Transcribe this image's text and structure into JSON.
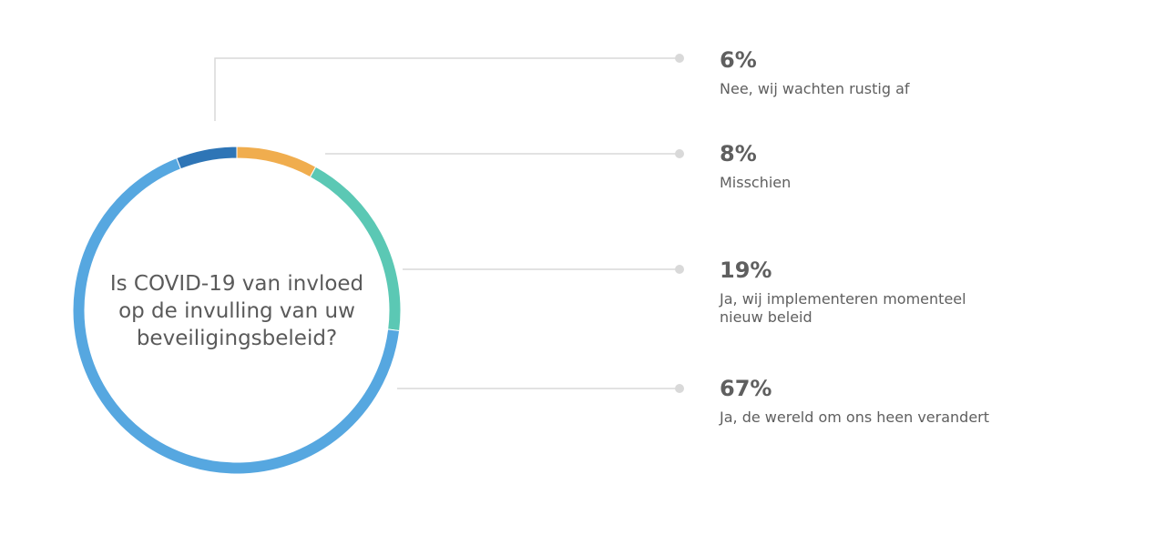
{
  "chart_data": {
    "type": "pie",
    "title": "Is COVID-19 van invloed op de invulling van uw beveiligingsbeleid?",
    "title_lines": [
      "Is COVID-19 van invloed",
      "op de invulling van uw",
      "beveiligingsbeleid?"
    ],
    "slices": [
      {
        "label": "Nee, wij wachten rustig af",
        "label_lines": [
          "Nee, wij wachten rustig af"
        ],
        "value": 6,
        "value_text": "6%",
        "color": "#2e75b6"
      },
      {
        "label": "Misschien",
        "label_lines": [
          "Misschien"
        ],
        "value": 8,
        "value_text": "8%",
        "color": "#f0ad4e"
      },
      {
        "label": "Ja, wij implementeren momenteel nieuw beleid",
        "label_lines": [
          "Ja, wij implementeren momenteel",
          "nieuw beleid"
        ],
        "value": 19,
        "value_text": "19%",
        "color": "#5bc8b4"
      },
      {
        "label": "Ja, de wereld om ons heen verandert",
        "label_lines": [
          "Ja, de wereld om ons heen verandert"
        ],
        "value": 67,
        "value_text": "67%",
        "color": "#56a7e0"
      }
    ],
    "legend": "right"
  }
}
